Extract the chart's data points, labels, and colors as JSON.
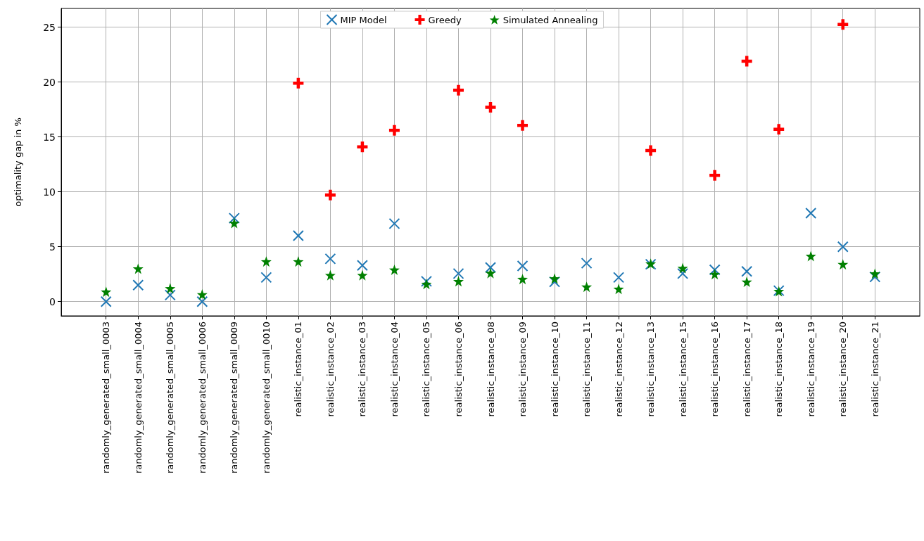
{
  "chart_data": {
    "type": "scatter",
    "ylabel": "optimality gap in %",
    "categories": [
      "randomly_generated_small_0003",
      "randomly_generated_small_0004",
      "randomly_generated_small_0005",
      "randomly_generated_small_0006",
      "randomly_generated_small_0009",
      "randomly_generated_small_0010",
      "realistic_instance_01",
      "realistic_instance_02",
      "realistic_instance_03",
      "realistic_instance_04",
      "realistic_instance_05",
      "realistic_instance_06",
      "realistic_instance_08",
      "realistic_instance_09",
      "realistic_instance_10",
      "realistic_instance_11",
      "realistic_instance_12",
      "realistic_instance_13",
      "realistic_instance_15",
      "realistic_instance_16",
      "realistic_instance_17",
      "realistic_instance_18",
      "realistic_instance_19",
      "realistic_instance_20",
      "realistic_instance_21"
    ],
    "series": [
      {
        "name": "MIP Model",
        "color": "#1f77b4",
        "marker": "cross",
        "values": [
          0,
          1.5,
          0.6,
          0,
          7.6,
          2.2,
          6.0,
          3.9,
          3.3,
          7.1,
          1.85,
          2.55,
          3.1,
          3.25,
          1.8,
          3.5,
          2.2,
          3.4,
          2.55,
          2.9,
          2.75,
          1.0,
          8.05,
          5.0,
          2.25
        ]
      },
      {
        "name": "Greedy",
        "color": "#ff0000",
        "marker": "plus",
        "values": [
          null,
          null,
          null,
          null,
          null,
          null,
          19.9,
          9.7,
          14.1,
          15.6,
          null,
          19.25,
          17.7,
          16.05,
          null,
          null,
          null,
          13.75,
          null,
          11.5,
          21.9,
          15.7,
          null,
          25.25,
          null
        ]
      },
      {
        "name": "Simulated Annealing",
        "color": "#008000",
        "marker": "star",
        "values": [
          0.9,
          3.0,
          1.2,
          0.65,
          7.15,
          3.65,
          3.65,
          2.4,
          2.4,
          2.9,
          1.6,
          1.85,
          2.6,
          2.05,
          2.1,
          1.35,
          1.15,
          3.45,
          3.05,
          2.5,
          1.8,
          0.95,
          4.15,
          3.4,
          2.55
        ]
      }
    ],
    "ylim": [
      -1.3,
      26.7
    ],
    "yticks": [
      0,
      5,
      10,
      15,
      20,
      25
    ],
    "grid": true,
    "legend": "top"
  }
}
